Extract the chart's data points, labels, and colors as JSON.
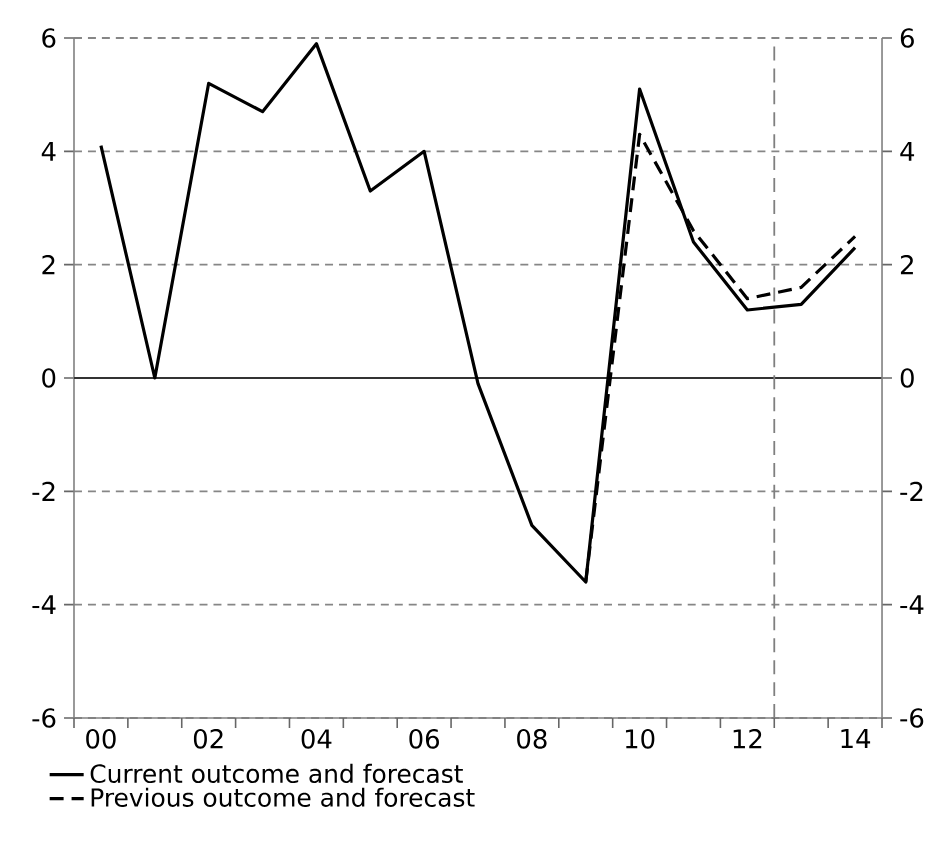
{
  "chart_data": {
    "type": "line",
    "x": [
      2000,
      2001,
      2002,
      2003,
      2004,
      2005,
      2006,
      2007,
      2008,
      2009,
      2010,
      2011,
      2012,
      2013,
      2014
    ],
    "series": [
      {
        "name": "Current outcome and forecast",
        "color": "#000000",
        "line_style": "solid",
        "values": [
          4.1,
          0.0,
          5.2,
          4.7,
          5.9,
          3.3,
          4.0,
          -0.1,
          -2.6,
          -3.6,
          5.1,
          2.4,
          1.2,
          1.3,
          2.3
        ]
      },
      {
        "name": "Previous outcome and forecast",
        "color": "#000000",
        "line_style": "dashed",
        "values": [
          null,
          null,
          null,
          null,
          null,
          null,
          null,
          null,
          null,
          -3.6,
          4.3,
          2.6,
          1.4,
          1.6,
          2.5
        ]
      }
    ],
    "xlim": [
      1999.5,
      2014.5
    ],
    "xticks": [
      {
        "value": 1999.5,
        "label": null
      },
      {
        "value": 2000,
        "label": "00"
      },
      {
        "value": 2000.5,
        "label": null
      },
      {
        "value": 2001.5,
        "label": null
      },
      {
        "value": 2002,
        "label": "02"
      },
      {
        "value": 2002.5,
        "label": null
      },
      {
        "value": 2003.5,
        "label": null
      },
      {
        "value": 2004,
        "label": "04"
      },
      {
        "value": 2004.5,
        "label": null
      },
      {
        "value": 2005.5,
        "label": null
      },
      {
        "value": 2006,
        "label": "06"
      },
      {
        "value": 2006.5,
        "label": null
      },
      {
        "value": 2007.5,
        "label": null
      },
      {
        "value": 2008,
        "label": "08"
      },
      {
        "value": 2008.5,
        "label": null
      },
      {
        "value": 2009.5,
        "label": null
      },
      {
        "value": 2010,
        "label": "10"
      },
      {
        "value": 2010.5,
        "label": null
      },
      {
        "value": 2011.5,
        "label": null
      },
      {
        "value": 2012,
        "label": "12"
      },
      {
        "value": 2012.5,
        "label": null
      },
      {
        "value": 2013.5,
        "label": null
      },
      {
        "value": 2014,
        "label": "14"
      },
      {
        "value": 2014.5,
        "label": null
      }
    ],
    "ylim": [
      -6,
      6
    ],
    "yticks": [
      -6,
      -4,
      -2,
      0,
      2,
      4,
      6
    ],
    "y2lim": [
      -6,
      6
    ],
    "y2ticks": [
      -6,
      -4,
      -2,
      0,
      2,
      4,
      6
    ],
    "grid": "y",
    "legend": "bottom left",
    "marker": "none",
    "ref_lines": [
      {
        "axis": "y",
        "value": 0,
        "color": "#333333",
        "line_style": "solid"
      },
      {
        "axis": "x",
        "value": 2012.5,
        "color": "#7f7f7f",
        "line_style": "dashed"
      }
    ]
  }
}
